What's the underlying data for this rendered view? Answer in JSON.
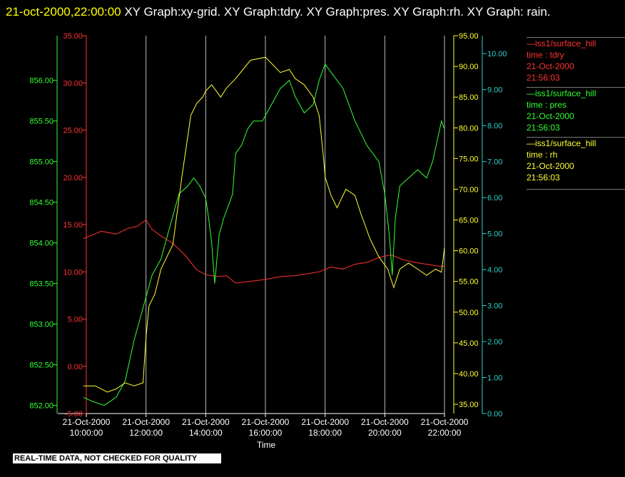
{
  "header": {
    "timestamp": "21-oct-2000,22:00:00",
    "rest": "  XY Graph:xy-grid.  XY Graph:tdry.  XY Graph:pres.  XY Graph:rh.  XY Graph: rain."
  },
  "footer": {
    "qc_note": "REAL-TIME DATA, NOT CHECKED FOR QUALITY",
    "xlabel": "Time"
  },
  "legend": [
    {
      "line1": "—iss1/surface_hill",
      "line2": "time : tdry",
      "line3": "21-Oct-2000",
      "line4": "21:56:03",
      "color": "#ff3333"
    },
    {
      "line1": "—iss1/surface_hill",
      "line2": "time : pres",
      "line3": "21-Oct-2000",
      "line4": "21:56:03",
      "color": "#33ff33"
    },
    {
      "line1": "—iss1/surface_hill",
      "line2": "time : rh",
      "line3": "21-Oct-2000",
      "line4": "21:56:03",
      "color": "#ffff33"
    }
  ],
  "chart_data": {
    "type": "line",
    "xlabel": "Time",
    "x_ticks": [
      {
        "date": "21-Oct-2000",
        "time": "10:00:00"
      },
      {
        "date": "21-Oct-2000",
        "time": "12:00:00"
      },
      {
        "date": "21-Oct-2000",
        "time": "14:00:00"
      },
      {
        "date": "21-Oct-2000",
        "time": "16:00:00"
      },
      {
        "date": "21-Oct-2000",
        "time": "18:00:00"
      },
      {
        "date": "21-Oct-2000",
        "time": "20:00:00"
      },
      {
        "date": "21-Oct-2000",
        "time": "22:00:00"
      }
    ],
    "x_range_hours": [
      10,
      22
    ],
    "grid": "vertical",
    "axes": {
      "pres": {
        "color": "#33ff33",
        "range": [
          851.9,
          856.55
        ],
        "ticks": [
          "852.00",
          "852.50",
          "853.00",
          "853.50",
          "854.00",
          "854.50",
          "855.00",
          "855.50",
          "856.00"
        ]
      },
      "tdry": {
        "color": "#ff3333",
        "range": [
          -5,
          35
        ],
        "ticks": [
          "-5.00",
          "0.00",
          "5.00",
          "10.00",
          "15.00",
          "20.00",
          "25.00",
          "30.00",
          "35.00"
        ]
      },
      "rh": {
        "color": "#ffff33",
        "range": [
          33.5,
          95
        ],
        "ticks": [
          "35.00",
          "40.00",
          "45.00",
          "50.00",
          "55.00",
          "60.00",
          "65.00",
          "70.00",
          "75.00",
          "80.00",
          "85.00",
          "90.00",
          "95.00"
        ]
      },
      "rain": {
        "color": "#33cccc",
        "range": [
          0,
          10.5
        ],
        "ticks": [
          "0.00",
          "1.00",
          "2.00",
          "3.00",
          "4.00",
          "5.00",
          "6.00",
          "7.00",
          "8.00",
          "9.00",
          "10.00"
        ]
      }
    },
    "series": [
      {
        "name": "tdry",
        "axis": "tdry",
        "x": [
          9.9,
          10.5,
          11.0,
          11.4,
          11.7,
          12.0,
          12.2,
          12.5,
          12.9,
          13.3,
          13.7,
          14.0,
          14.4,
          14.7,
          15.0,
          15.5,
          16.0,
          16.5,
          17.0,
          17.4,
          17.8,
          18.2,
          18.6,
          19.0,
          19.4,
          19.8,
          20.2,
          20.6,
          21.0,
          21.4,
          21.8,
          22.0
        ],
        "y": [
          13.5,
          14.3,
          14.0,
          14.6,
          14.8,
          15.5,
          14.5,
          13.8,
          13.0,
          11.8,
          10.2,
          9.7,
          9.5,
          9.6,
          8.8,
          9.0,
          9.2,
          9.5,
          9.6,
          9.8,
          10.0,
          10.5,
          10.3,
          10.8,
          11.0,
          11.5,
          11.8,
          11.3,
          11.0,
          10.8,
          10.6,
          10.6
        ]
      },
      {
        "name": "pres",
        "axis": "pres",
        "x": [
          9.9,
          10.2,
          10.6,
          11.0,
          11.3,
          11.6,
          11.9,
          12.2,
          12.5,
          12.8,
          13.1,
          13.4,
          13.6,
          13.8,
          14.0,
          14.1,
          14.2,
          14.3,
          14.45,
          14.6,
          14.9,
          15.0,
          15.2,
          15.4,
          15.6,
          15.9,
          16.2,
          16.5,
          16.8,
          17.0,
          17.3,
          17.6,
          17.8,
          18.0,
          18.2,
          18.6,
          19.0,
          19.4,
          19.8,
          20.0,
          20.15,
          20.25,
          20.35,
          20.5,
          20.8,
          21.1,
          21.4,
          21.6,
          21.9,
          22.0
        ],
        "y": [
          852.1,
          852.05,
          852.0,
          852.1,
          852.3,
          852.8,
          853.2,
          853.6,
          853.8,
          854.2,
          854.6,
          854.7,
          854.8,
          854.7,
          854.55,
          854.3,
          854.0,
          853.5,
          854.1,
          854.3,
          854.6,
          855.1,
          855.2,
          855.4,
          855.5,
          855.5,
          855.7,
          855.9,
          856.0,
          855.8,
          855.6,
          855.7,
          856.0,
          856.2,
          856.1,
          855.9,
          855.5,
          855.2,
          855.0,
          854.6,
          854.1,
          853.6,
          854.3,
          854.7,
          854.8,
          854.9,
          854.8,
          855.0,
          855.5,
          855.4
        ]
      },
      {
        "name": "rh",
        "axis": "rh",
        "x": [
          9.9,
          10.3,
          10.7,
          11.0,
          11.3,
          11.6,
          11.9,
          12.0,
          12.1,
          12.3,
          12.5,
          12.7,
          12.9,
          13.2,
          13.5,
          13.7,
          13.9,
          14.0,
          14.2,
          14.5,
          14.7,
          15.0,
          15.5,
          16.0,
          16.3,
          16.5,
          16.8,
          17.0,
          17.3,
          17.6,
          17.8,
          17.95,
          18.0,
          18.2,
          18.4,
          18.7,
          19.0,
          19.2,
          19.5,
          19.8,
          20.1,
          20.3,
          20.5,
          20.8,
          21.1,
          21.4,
          21.7,
          21.9,
          22.0
        ],
        "y": [
          38.0,
          38.0,
          37.0,
          37.5,
          38.5,
          38.0,
          38.5,
          46.0,
          51.0,
          53.0,
          57.0,
          59.0,
          61.0,
          72.0,
          82.0,
          84.0,
          85.0,
          86.0,
          87.0,
          85.0,
          86.5,
          88.0,
          91.0,
          91.5,
          90.0,
          89.0,
          89.5,
          88.0,
          87.0,
          85.0,
          82.0,
          75.0,
          72.0,
          69.0,
          67.0,
          70.0,
          69.0,
          66.0,
          62.0,
          59.0,
          57.0,
          54.0,
          57.0,
          58.0,
          57.0,
          56.0,
          57.0,
          56.5,
          60.5
        ]
      }
    ]
  }
}
